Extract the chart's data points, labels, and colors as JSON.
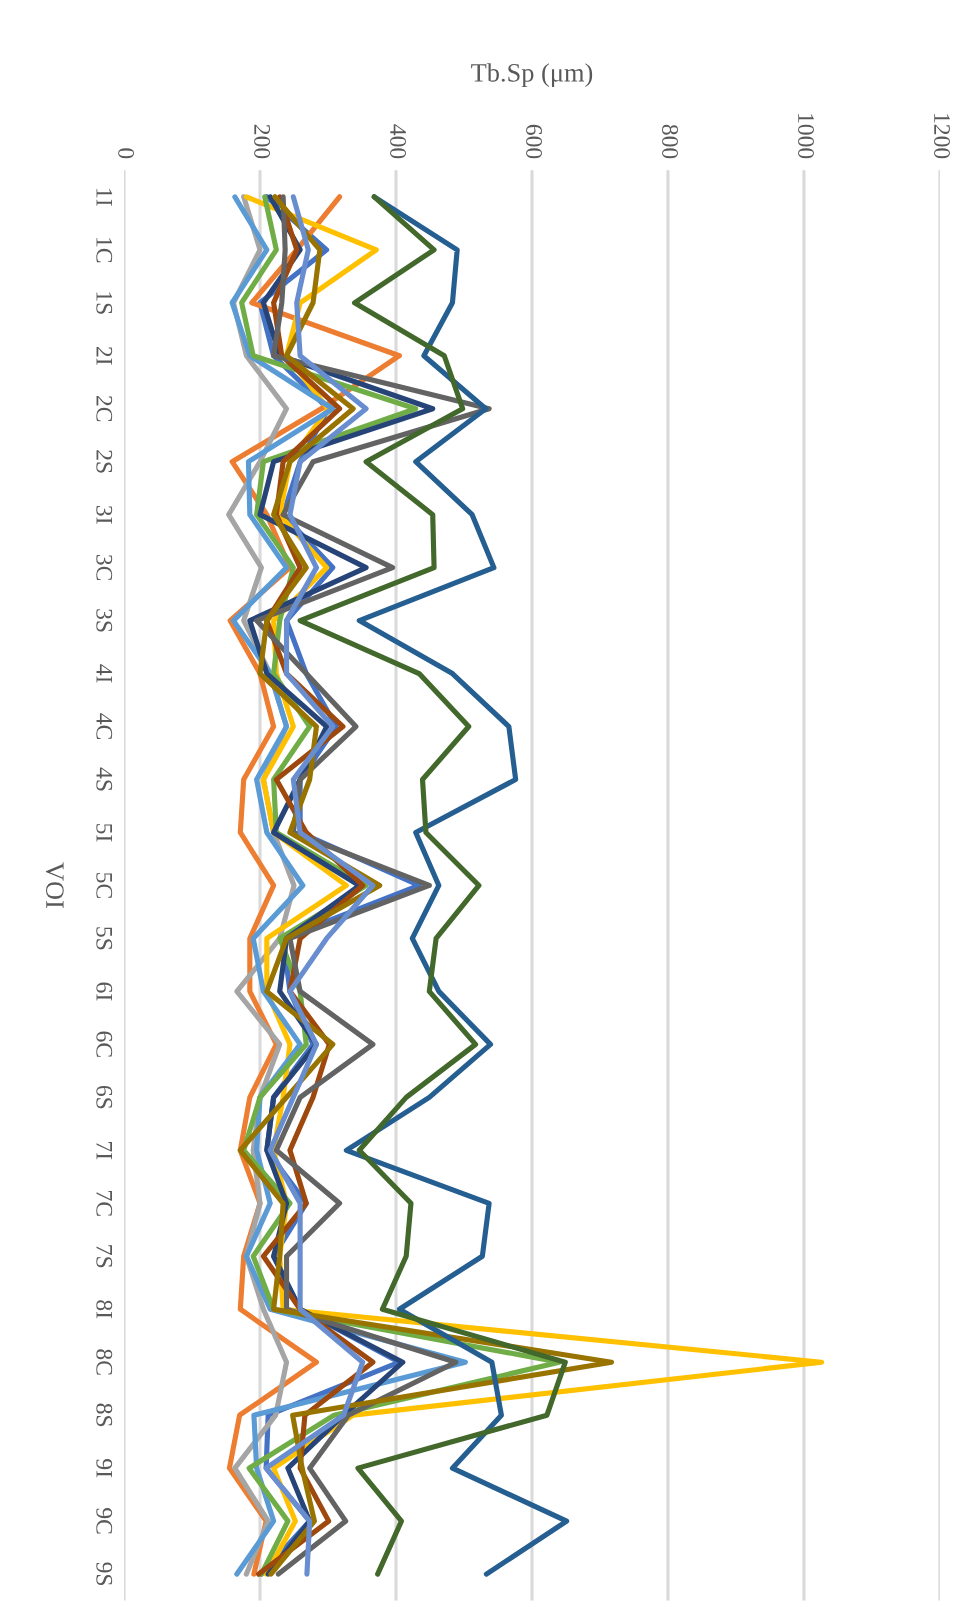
{
  "chart_data": {
    "type": "line",
    "orientation": "horizontal",
    "xlabel": "Tb.Sp (μm)",
    "ylabel": "VOI",
    "categories": [
      "1I",
      "1C",
      "1S",
      "2I",
      "2C",
      "2S",
      "3I",
      "3C",
      "3S",
      "4I",
      "4C",
      "4S",
      "5I",
      "5C",
      "5S",
      "6I",
      "6C",
      "6S",
      "7I",
      "7C",
      "7S",
      "8I",
      "8C",
      "8S",
      "9I",
      "9C",
      "9S"
    ],
    "xlim": [
      0,
      1200
    ],
    "xticks": [
      0,
      200,
      400,
      600,
      800,
      1000,
      1200
    ],
    "grid": "x",
    "marker": "none",
    "line_style": "solid",
    "series": [
      {
        "color": "#4472c4",
        "values": [
          210,
          298,
          200,
          220,
          300,
          259,
          234,
          307,
          239,
          268,
          312,
          259,
          259,
          434,
          234,
          244,
          278,
          220,
          210,
          268,
          220,
          259,
          405,
          212,
          209,
          273,
          202
        ]
      },
      {
        "color": "#ed7d31",
        "values": [
          317,
          254,
          188,
          405,
          290,
          159,
          210,
          244,
          156,
          200,
          220,
          176,
          171,
          220,
          185,
          185,
          224,
          185,
          171,
          200,
          176,
          171,
          283,
          170,
          155,
          209,
          191
        ]
      },
      {
        "color": "#a5a5a5",
        "values": [
          176,
          200,
          161,
          180,
          239,
          200,
          154,
          202,
          176,
          215,
          239,
          205,
          220,
          250,
          229,
          166,
          229,
          200,
          190,
          200,
          180,
          205,
          239,
          223,
          163,
          212,
          180
        ]
      },
      {
        "color": "#ffc000",
        "values": [
          180,
          371,
          259,
          239,
          300,
          244,
          229,
          298,
          220,
          224,
          249,
          205,
          220,
          327,
          210,
          210,
          244,
          234,
          220,
          239,
          229,
          234,
          1026,
          337,
          220,
          252,
          209
        ]
      },
      {
        "color": "#5b9bd5",
        "values": [
          163,
          210,
          159,
          185,
          307,
          183,
          185,
          239,
          161,
          215,
          239,
          195,
          210,
          263,
          190,
          205,
          259,
          200,
          195,
          215,
          180,
          215,
          502,
          191,
          195,
          220,
          166
        ]
      },
      {
        "color": "#70ad47",
        "values": [
          207,
          224,
          173,
          190,
          429,
          205,
          195,
          249,
          229,
          220,
          273,
          220,
          224,
          356,
          229,
          259,
          268,
          200,
          176,
          244,
          190,
          220,
          640,
          309,
          184,
          241,
          202
        ]
      },
      {
        "color": "#264478",
        "values": [
          215,
          259,
          205,
          229,
          454,
          220,
          200,
          356,
          185,
          210,
          298,
          259,
          220,
          346,
          239,
          229,
          283,
          220,
          210,
          239,
          220,
          259,
          410,
          323,
          241,
          273,
          212
        ]
      },
      {
        "color": "#9e480e",
        "values": [
          229,
          254,
          220,
          232,
          317,
          234,
          224,
          259,
          210,
          239,
          322,
          224,
          268,
          351,
          259,
          244,
          302,
          278,
          244,
          268,
          205,
          259,
          366,
          266,
          259,
          301,
          198
        ]
      },
      {
        "color": "#636363",
        "values": [
          234,
          237,
          232,
          220,
          537,
          278,
          234,
          395,
          195,
          268,
          341,
          259,
          249,
          449,
          244,
          259,
          366,
          259,
          224,
          317,
          239,
          239,
          488,
          330,
          273,
          326,
          227
        ]
      },
      {
        "color": "#997300",
        "values": [
          222,
          288,
          278,
          239,
          337,
          244,
          220,
          268,
          210,
          200,
          283,
          273,
          244,
          376,
          239,
          210,
          307,
          239,
          171,
          234,
          229,
          220,
          717,
          248,
          262,
          280,
          216
        ]
      },
      {
        "color": "#255e91",
        "values": [
          368,
          490,
          483,
          441,
          532,
          429,
          512,
          544,
          346,
          483,
          566,
          576,
          429,
          463,
          424,
          463,
          539,
          449,
          327,
          537,
          527,
          405,
          541,
          555,
          483,
          651,
          533
        ]
      },
      {
        "color": "#43682b",
        "values": [
          368,
          456,
          339,
          471,
          498,
          356,
          454,
          456,
          259,
          434,
          507,
          439,
          444,
          522,
          459,
          449,
          517,
          415,
          346,
          422,
          415,
          380,
          649,
          622,
          344,
          408,
          373
        ]
      },
      {
        "color": "#698ed0",
        "values": [
          249,
          271,
          254,
          259,
          356,
          259,
          244,
          283,
          239,
          239,
          307,
          249,
          259,
          366,
          298,
          244,
          283,
          249,
          215,
          259,
          259,
          259,
          351,
          323,
          209,
          273,
          269
        ]
      }
    ]
  }
}
